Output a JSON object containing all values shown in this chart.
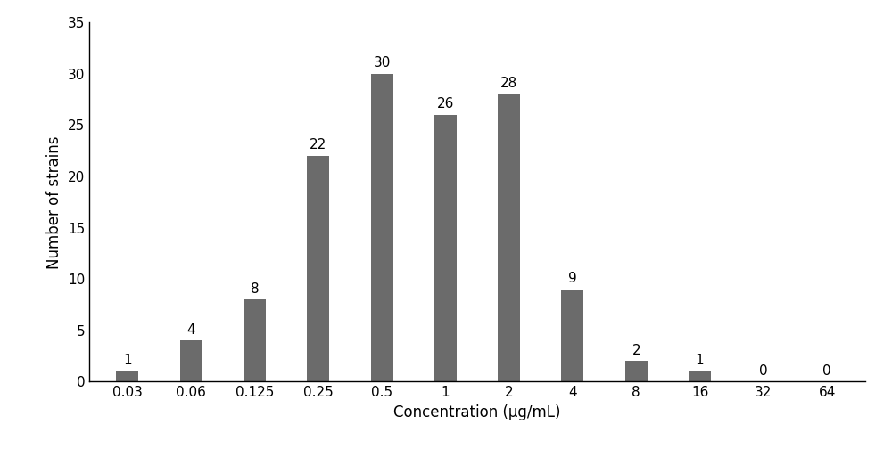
{
  "categories": [
    "0.03",
    "0.06",
    "0.125",
    "0.25",
    "0.5",
    "1",
    "2",
    "4",
    "8",
    "16",
    "32",
    "64"
  ],
  "values": [
    1,
    4,
    8,
    22,
    30,
    26,
    28,
    9,
    2,
    1,
    0,
    0
  ],
  "bar_color": "#6b6b6b",
  "xlabel": "Concentration (μg/mL)",
  "ylabel": "Number of strains",
  "ylim": [
    0,
    35
  ],
  "yticks": [
    0,
    5,
    10,
    15,
    20,
    25,
    30,
    35
  ],
  "label_fontsize": 12,
  "tick_fontsize": 11,
  "annotation_fontsize": 11,
  "background_color": "#ffffff",
  "bar_width": 0.35,
  "figsize": [
    10.0,
    5.04
  ],
  "dpi": 100
}
